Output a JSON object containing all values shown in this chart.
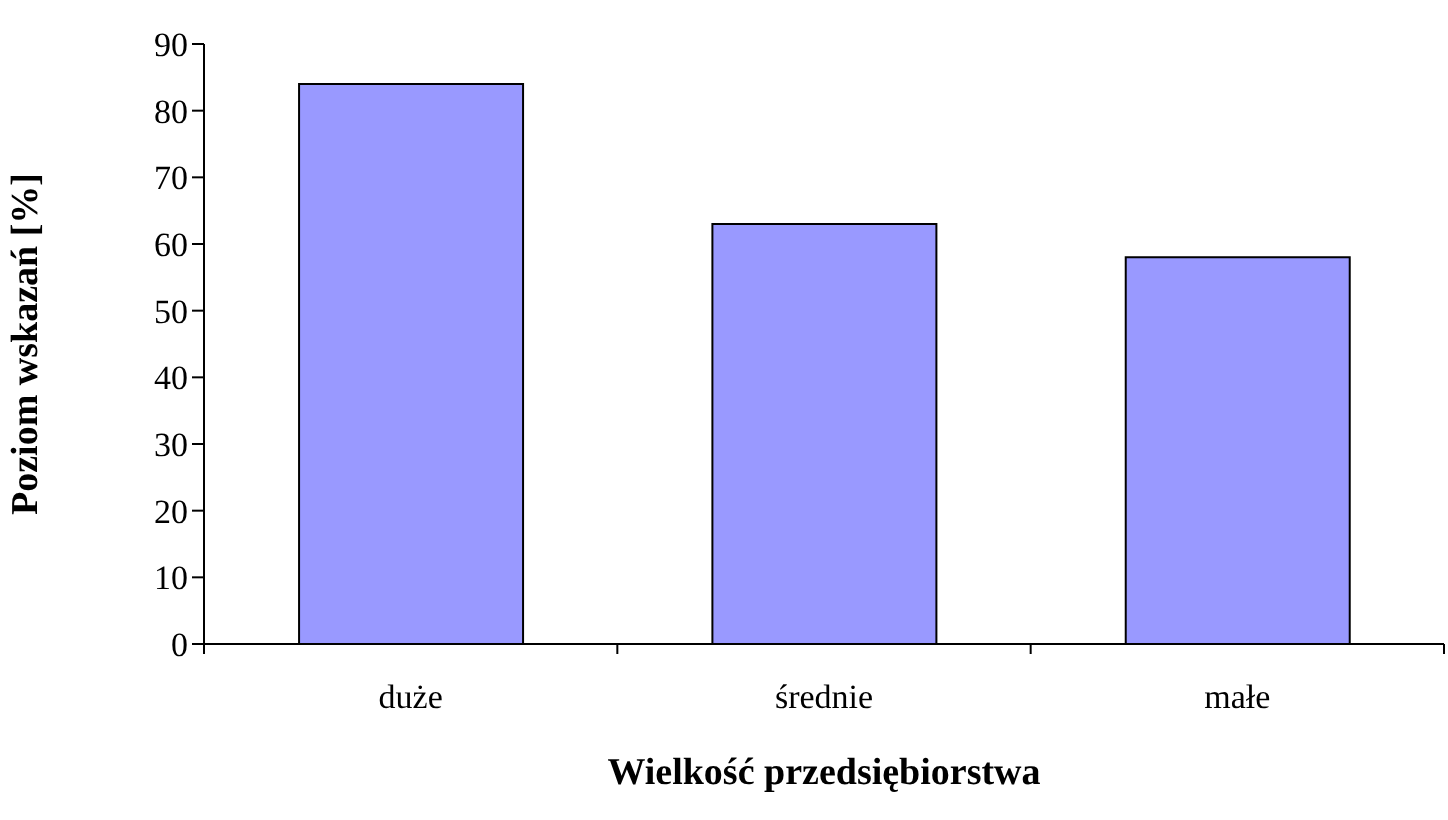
{
  "chart_data": {
    "type": "bar",
    "xlabel": "Wielkość przedsiębiorstwa",
    "ylabel": "Poziom wskazań [%]",
    "categories": [
      "duże",
      "średnie",
      "małe"
    ],
    "values": [
      84,
      63,
      58
    ],
    "color": "#9999ff",
    "ylim": [
      0,
      90
    ],
    "yticks": [
      0,
      10,
      20,
      30,
      40,
      50,
      60,
      70,
      80,
      90
    ],
    "grid": false,
    "legend": false
  }
}
